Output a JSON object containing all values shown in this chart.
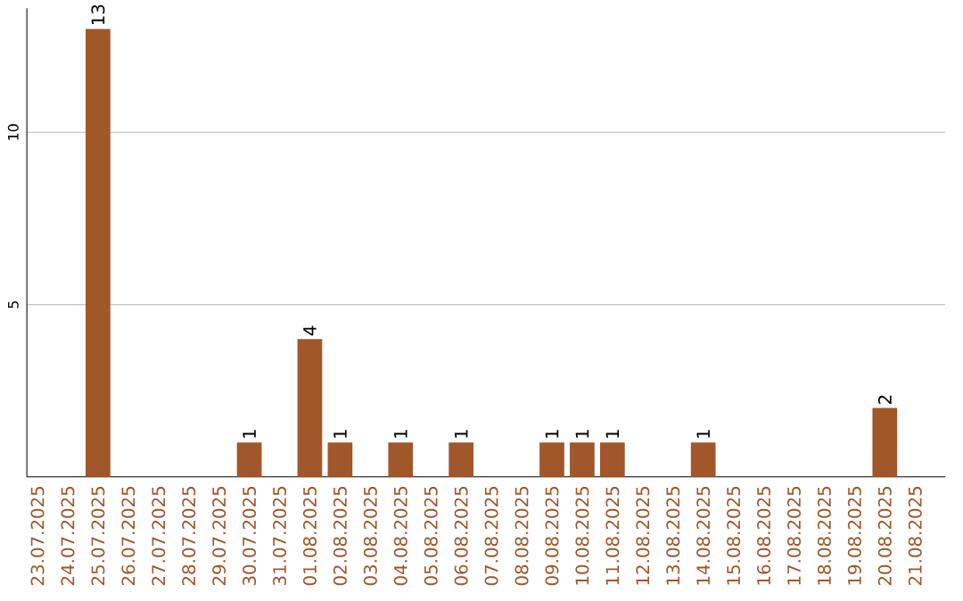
{
  "chart_data": {
    "type": "bar",
    "categories": [
      "23.07.2025",
      "24.07.2025",
      "25.07.2025",
      "26.07.2025",
      "27.07.2025",
      "28.07.2025",
      "29.07.2025",
      "30.07.2025",
      "31.07.2025",
      "01.08.2025",
      "02.08.2025",
      "03.08.2025",
      "04.08.2025",
      "05.08.2025",
      "06.08.2025",
      "07.08.2025",
      "08.08.2025",
      "09.08.2025",
      "10.08.2025",
      "11.08.2025",
      "12.08.2025",
      "13.08.2025",
      "14.08.2025",
      "15.08.2025",
      "16.08.2025",
      "17.08.2025",
      "18.08.2025",
      "19.08.2025",
      "20.08.2025",
      "21.08.2025"
    ],
    "values": [
      0,
      0,
      13,
      0,
      0,
      0,
      0,
      1,
      0,
      4,
      1,
      0,
      1,
      0,
      1,
      0,
      0,
      1,
      1,
      1,
      0,
      0,
      1,
      0,
      0,
      0,
      0,
      0,
      2,
      0
    ],
    "value_labels": [
      null,
      null,
      "13",
      null,
      null,
      null,
      null,
      "1",
      null,
      "4",
      "1",
      null,
      "1",
      null,
      "1",
      null,
      null,
      "1",
      "1",
      "1",
      null,
      null,
      "1",
      null,
      null,
      null,
      null,
      null,
      "2",
      null
    ],
    "color": "#a0572a",
    "ylim": [
      0,
      13.6
    ],
    "yticks": [
      5,
      10
    ],
    "grid": "y"
  }
}
